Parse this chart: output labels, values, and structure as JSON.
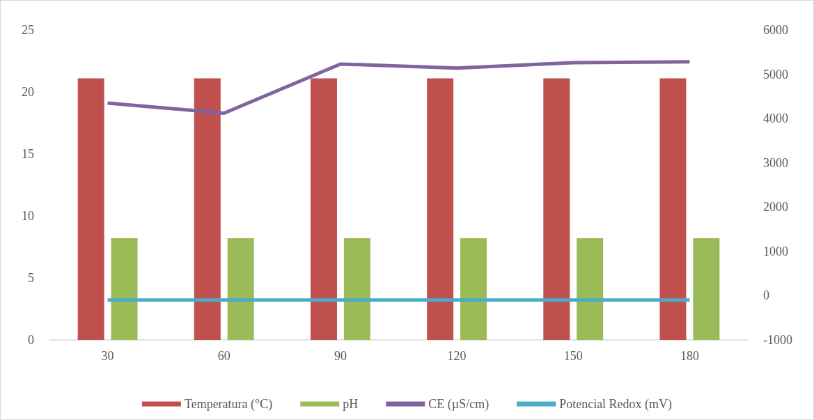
{
  "chart_data": {
    "type": "bar",
    "categories": [
      "30",
      "60",
      "90",
      "120",
      "150",
      "180"
    ],
    "series": [
      {
        "name": "Temperatura (°C)",
        "color": "#c0504d",
        "values": [
          21.1,
          21.1,
          21.1,
          21.1,
          21.1,
          21.1
        ]
      },
      {
        "name": "pH",
        "color": "#9bbb59",
        "values": [
          8.2,
          8.2,
          8.2,
          8.2,
          8.2,
          8.2
        ]
      },
      {
        "name": "CE (µS/cm)",
        "type": "line",
        "axis": "y2",
        "color": "#8064a2",
        "values": [
          4350,
          4120,
          5230,
          5140,
          5260,
          5280
        ]
      },
      {
        "name": "Potencial Redox (mV)",
        "type": "line",
        "axis": "y2",
        "color": "#4bacc6",
        "values": [
          -100,
          -100,
          -100,
          -100,
          -100,
          -100
        ]
      }
    ],
    "ylim": [
      0,
      25
    ],
    "yticks": [
      0,
      5,
      10,
      15,
      20,
      25
    ],
    "y2lim": [
      -1000,
      6000
    ],
    "y2ticks": [
      -1000,
      0,
      1000,
      2000,
      3000,
      4000,
      5000,
      6000
    ],
    "grid": false,
    "legend": "bottom",
    "marker": "none",
    "line_style": "solid"
  }
}
